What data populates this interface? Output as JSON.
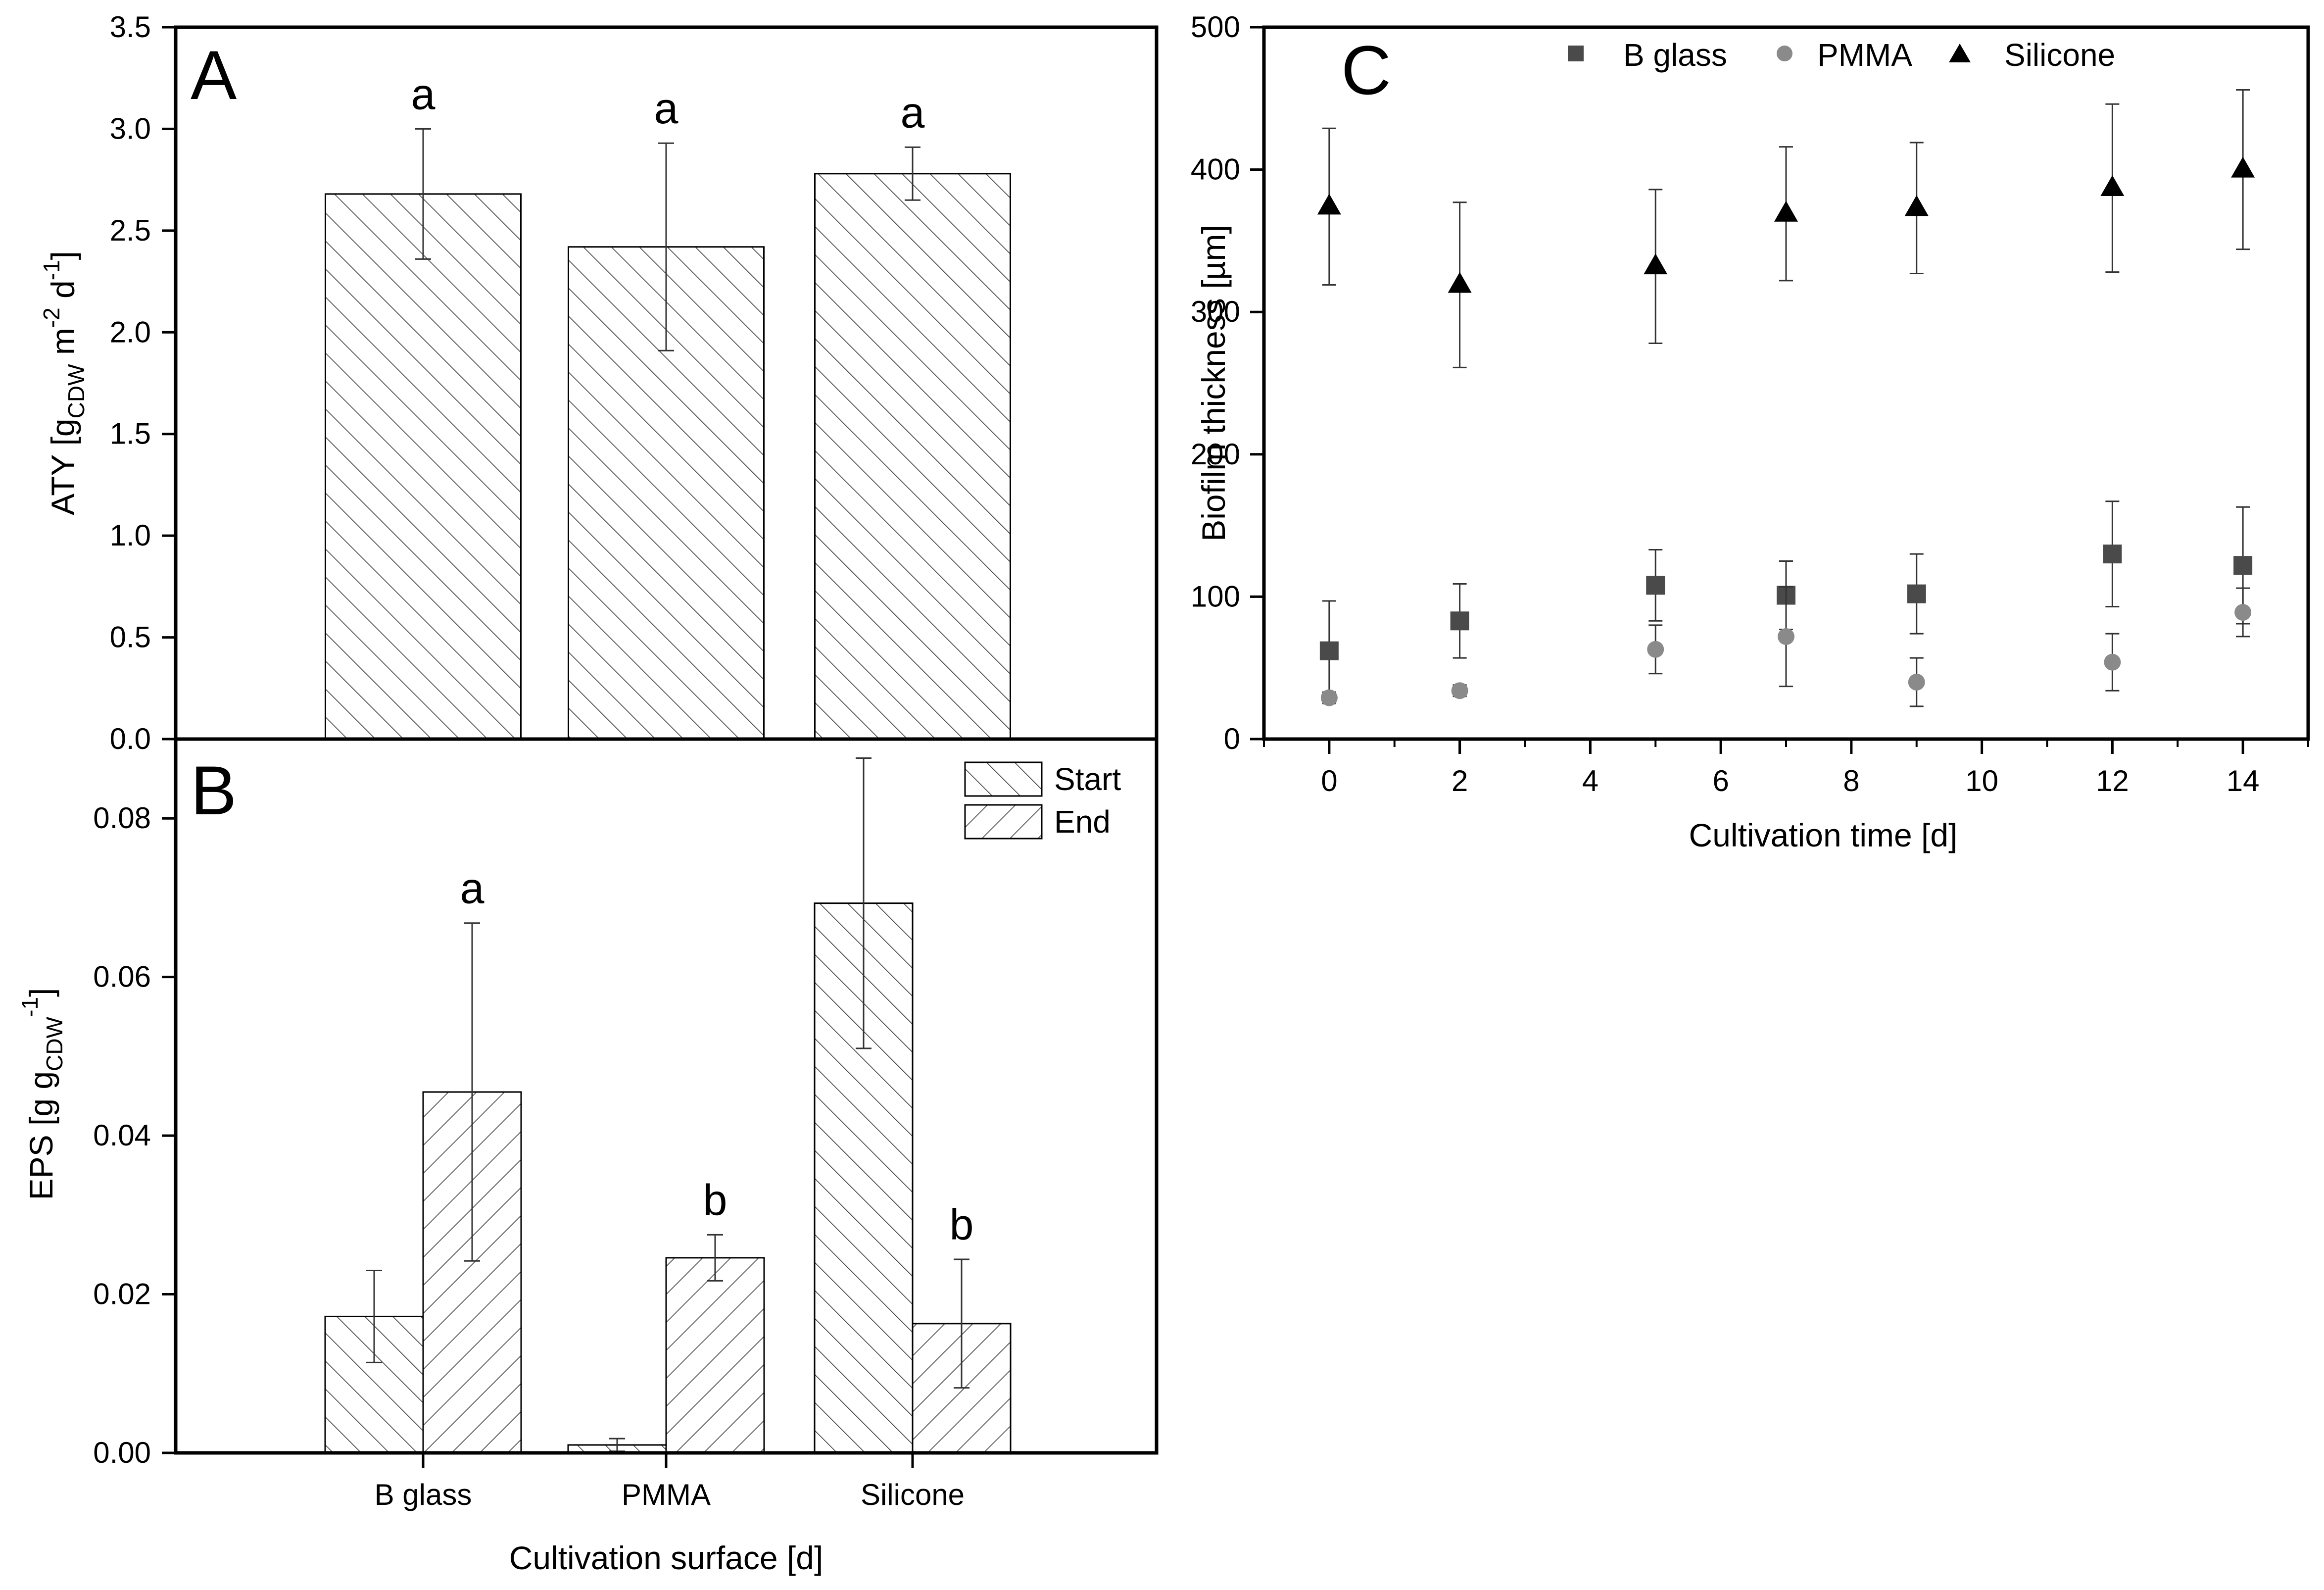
{
  "chart_data": [
    {
      "panel": "A",
      "type": "bar",
      "panel_label": "A",
      "categories": [
        "B glass",
        "PMMA",
        "Silicone"
      ],
      "values": [
        2.68,
        2.42,
        2.78
      ],
      "errors": [
        0.32,
        0.51,
        0.13
      ],
      "significance": [
        "a",
        "a",
        "a"
      ],
      "ylabel": {
        "prefix": "ATY [g",
        "sub1": "CDW",
        "mid1": " m",
        "sup1": "-2",
        "mid2": " d",
        "sup2": "-1",
        "suffix": "]"
      },
      "ylim": [
        0,
        3.5
      ],
      "yticks": [
        "0.0",
        "0.5",
        "1.0",
        "1.5",
        "2.0",
        "2.5",
        "3.0",
        "3.5"
      ],
      "grid": false
    },
    {
      "panel": "B",
      "type": "bar",
      "panel_label": "B",
      "categories": [
        "B glass",
        "PMMA",
        "Silicone"
      ],
      "series": [
        {
          "name": "Start",
          "values": [
            0.0172,
            0.001,
            0.0693
          ],
          "errors": [
            0.0058,
            0.0008,
            0.0183
          ]
        },
        {
          "name": "End",
          "values": [
            0.0455,
            0.0246,
            0.0163
          ],
          "errors": [
            0.0213,
            0.0029,
            0.0081
          ]
        }
      ],
      "significance": [
        "a",
        "b",
        "b"
      ],
      "xlabel": "Cultivation surface [d]",
      "ylabel": {
        "prefix": "EPS [g g",
        "sub1": "CDW",
        "sup1": "-1",
        "suffix": "]"
      },
      "ylim": [
        0,
        0.09
      ],
      "yticks": [
        "0.00",
        "0.02",
        "0.04",
        "0.06",
        "0.08"
      ],
      "legend_position": "top-right",
      "grid": false
    },
    {
      "panel": "C",
      "type": "scatter",
      "panel_label": "C",
      "x": [
        0,
        2,
        5,
        7,
        9,
        12,
        14
      ],
      "series": [
        {
          "name": "B glass",
          "marker": "square",
          "color": "#4a4a4a",
          "values": [
            62,
            83,
            108,
            101,
            102,
            130,
            122
          ],
          "errors": [
            35,
            26,
            25,
            24,
            28,
            37,
            41
          ]
        },
        {
          "name": "PMMA",
          "marker": "circle",
          "color": "#8a8a8a",
          "values": [
            29,
            34,
            63,
            72,
            40,
            54,
            89
          ],
          "errors": [
            4,
            4,
            17,
            35,
            17,
            20,
            17
          ]
        },
        {
          "name": "Silicone",
          "marker": "triangle",
          "color": "#000000",
          "values": [
            374,
            319,
            332,
            369,
            373,
            387,
            400
          ],
          "errors": [
            55,
            58,
            54,
            47,
            46,
            59,
            56
          ]
        }
      ],
      "xlabel": "Cultivation time [d]",
      "ylabel": "Biofilm thickness [µm]",
      "xlim": [
        -1,
        15
      ],
      "ylim": [
        0,
        500
      ],
      "xticks": [
        "0",
        "2",
        "4",
        "6",
        "8",
        "10",
        "12",
        "14"
      ],
      "yticks": [
        "0",
        "100",
        "200",
        "300",
        "400",
        "500"
      ],
      "legend_position": "top",
      "grid": false
    }
  ]
}
